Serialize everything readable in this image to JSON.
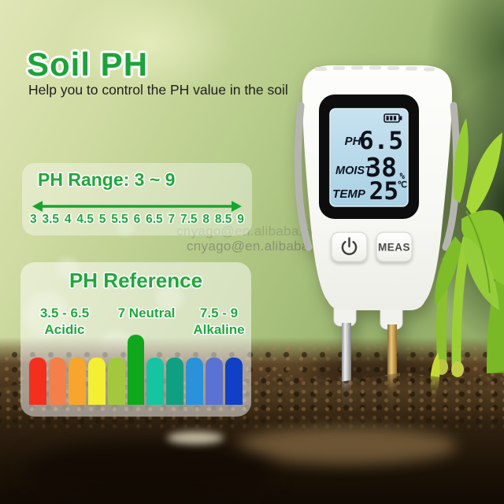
{
  "header": {
    "title": "Soil PH",
    "subtitle": "Help you to control the PH value in the soil"
  },
  "watermark": {
    "text": "cnyago@en.alibaba.com"
  },
  "ph_range": {
    "title": "PH Range: 3 ~ 9",
    "scale": [
      "3",
      "3.5",
      "4",
      "4.5",
      "5",
      "5.5",
      "6",
      "6.5",
      "7",
      "7.5",
      "8",
      "8.5",
      "9"
    ],
    "accent_color": "#1fa83a",
    "arrow_color": "#17a62f"
  },
  "ph_reference": {
    "title": "PH Reference",
    "groups": [
      {
        "range": "3.5 - 6.5",
        "label": "Acidic"
      },
      {
        "range": "7 Neutral",
        "label": ""
      },
      {
        "range": "7.5 - 9",
        "label": "Alkaline"
      }
    ],
    "bars": [
      {
        "color": "#f42f1e"
      },
      {
        "color": "#f57f4b"
      },
      {
        "color": "#f7a52d"
      },
      {
        "color": "#f3ef34"
      },
      {
        "color": "#a2c93d"
      },
      {
        "color": "#0fa81c",
        "tall": true
      },
      {
        "color": "#15c4a0"
      },
      {
        "color": "#0fa083"
      },
      {
        "color": "#2a92d8"
      },
      {
        "color": "#5a72d2"
      },
      {
        "color": "#1140c6"
      }
    ]
  },
  "device": {
    "display": {
      "lcd_color": "#b7d9e9",
      "bezel_color": "#0d0d0d",
      "battery_icon": "battery-icon",
      "rows": [
        {
          "label": "PH",
          "value": "6.5",
          "unit": ""
        },
        {
          "label": "MOIST",
          "value": "38",
          "unit": "%"
        },
        {
          "label": "TEMP",
          "value": "25",
          "unit": "℃"
        }
      ]
    },
    "buttons": [
      {
        "icon": "power-icon",
        "label": ""
      },
      {
        "label": "MEAS"
      }
    ]
  }
}
